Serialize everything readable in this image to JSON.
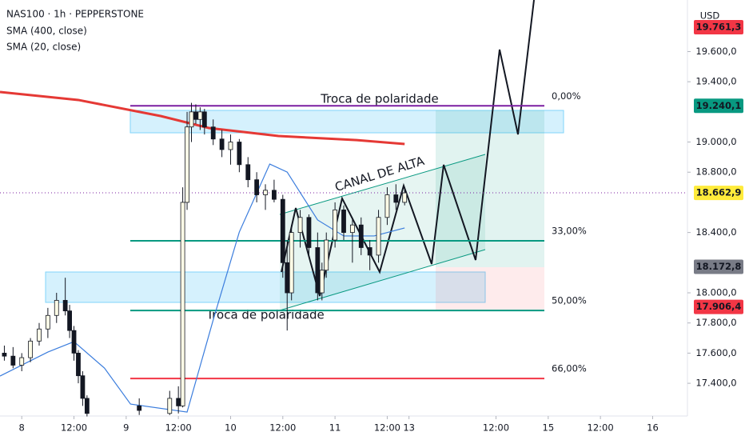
{
  "chart_data": {
    "type": "candlestick",
    "title": "NAS100 · 1h · PEPPERSTONE",
    "unit": "USD",
    "xlim": [
      -5,
      153
    ],
    "ylim": [
      17183,
      19942
    ],
    "xticks": [
      {
        "value": 0,
        "label": "8"
      },
      {
        "value": 12,
        "label": "12:00"
      },
      {
        "value": 24,
        "label": "9"
      },
      {
        "value": 36,
        "label": "12:00"
      },
      {
        "value": 48,
        "label": "10"
      },
      {
        "value": 60,
        "label": "12:00"
      },
      {
        "value": 72,
        "label": "11"
      },
      {
        "value": 84,
        "label": "12:00"
      },
      {
        "value": 89,
        "label": "13"
      },
      {
        "value": 109,
        "label": "12:00"
      },
      {
        "value": 121,
        "label": "15"
      },
      {
        "value": 133,
        "label": "12:00"
      },
      {
        "value": 145,
        "label": "16"
      }
    ],
    "yticks": [
      {
        "value": 19600,
        "label": "19.600,0"
      },
      {
        "value": 19400,
        "label": "19.400,0"
      },
      {
        "value": 19000,
        "label": "19.000,0"
      },
      {
        "value": 18800,
        "label": "18.800,0"
      },
      {
        "value": 18400,
        "label": "18.400,0"
      },
      {
        "value": 18000,
        "label": "18.000,0"
      },
      {
        "value": 17800,
        "label": "17.800,0"
      },
      {
        "value": 17600,
        "label": "17.600,0"
      },
      {
        "value": 17400,
        "label": "17.400,0"
      }
    ],
    "candles": {
      "x": [
        -4,
        -2,
        0,
        2,
        4,
        6,
        8,
        10,
        11,
        12,
        13,
        14,
        15,
        27,
        34,
        36,
        37,
        38,
        39,
        40,
        41,
        42,
        44,
        46,
        48,
        50,
        52,
        54,
        56,
        58,
        60,
        61,
        62,
        64,
        66,
        68,
        69,
        70,
        72,
        74,
        76,
        78,
        80,
        82,
        84,
        86,
        88
      ],
      "open": [
        17600,
        17580,
        17520,
        17570,
        17680,
        17760,
        17850,
        17950,
        17880,
        17750,
        17600,
        17450,
        17300,
        17250,
        17200,
        17300,
        17250,
        18600,
        19100,
        19200,
        19150,
        19200,
        19100,
        19020,
        18950,
        19000,
        18850,
        18750,
        18650,
        18680,
        18620,
        18200,
        18000,
        18400,
        18500,
        18300,
        18000,
        18150,
        18350,
        18550,
        18400,
        18450,
        18300,
        18250,
        18500,
        18650,
        18600
      ],
      "high": [
        17650,
        17640,
        17600,
        17700,
        17800,
        17900,
        18000,
        18100,
        17920,
        17780,
        17620,
        17480,
        17320,
        17300,
        17350,
        17380,
        18700,
        19200,
        19260,
        19250,
        19230,
        19220,
        19150,
        19080,
        19050,
        19020,
        18900,
        18800,
        18720,
        18750,
        18650,
        18350,
        18450,
        18550,
        18520,
        18400,
        18200,
        18400,
        18600,
        18580,
        18500,
        18500,
        18350,
        18550,
        18700,
        18720,
        18700
      ],
      "low": [
        17550,
        17500,
        17480,
        17540,
        17650,
        17700,
        17800,
        17850,
        17700,
        17550,
        17400,
        17250,
        17180,
        17190,
        17190,
        17200,
        17240,
        18550,
        19000,
        19120,
        19080,
        19050,
        18980,
        18900,
        18850,
        18800,
        18700,
        18600,
        18550,
        18600,
        18100,
        17750,
        17950,
        18300,
        18250,
        17950,
        17950,
        18100,
        18300,
        18350,
        18200,
        18250,
        18150,
        18200,
        18450,
        18550,
        18580
      ],
      "close": [
        17580,
        17520,
        17570,
        17680,
        17760,
        17850,
        17950,
        17880,
        17750,
        17600,
        17450,
        17300,
        17200,
        17220,
        17300,
        17250,
        18600,
        19100,
        19200,
        19150,
        19200,
        19100,
        19020,
        18950,
        19000,
        18850,
        18750,
        18650,
        18680,
        18620,
        18200,
        18000,
        18400,
        18500,
        18300,
        18000,
        18150,
        18350,
        18550,
        18400,
        18450,
        18300,
        18250,
        18500,
        18650,
        18600,
        18663
      ]
    },
    "series": [
      {
        "name": "SMA (400, close)",
        "color": "#e53935",
        "x": [
          -5,
          13,
          32,
          43,
          59,
          77,
          88
        ],
        "values": [
          19332,
          19279,
          19172,
          19093,
          19040,
          19013,
          18987
        ]
      },
      {
        "name": "SMA (20, close)",
        "color": "#3b7ddd",
        "x": [
          -5,
          6,
          12,
          19,
          25,
          38,
          44,
          50,
          57,
          61,
          68,
          74,
          81,
          88
        ],
        "values": [
          17448,
          17607,
          17676,
          17501,
          17262,
          17209,
          17820,
          18403,
          18854,
          18801,
          18483,
          18377,
          18377,
          18430
        ]
      }
    ],
    "levels": [
      {
        "label": "0,00%",
        "value": 19240,
        "color": "#7b1fa2"
      },
      {
        "label": "33,00%",
        "value": 18345,
        "color": "#089981"
      },
      {
        "label": "50,00%",
        "value": 17883,
        "color": "#089981"
      },
      {
        "label": "66,00%",
        "value": 17432,
        "color": "#f23645"
      }
    ],
    "price_labels": [
      {
        "value": 19761.3,
        "label": "19.761,3",
        "color": "#f23645"
      },
      {
        "value": 19240.1,
        "label": "19.240,1",
        "color": "#089981"
      },
      {
        "value": 18662.9,
        "label": "18.662,9",
        "color": "#ffeb3b"
      },
      {
        "value": 18172.8,
        "label": "18.172,8",
        "color": "#787b86"
      },
      {
        "value": 17906.4,
        "label": "17.906,4",
        "color": "#f23645"
      }
    ],
    "annotations": [
      "Troca de polaridade",
      "Troca de polaridade",
      "CANAL DE ALTA"
    ]
  }
}
